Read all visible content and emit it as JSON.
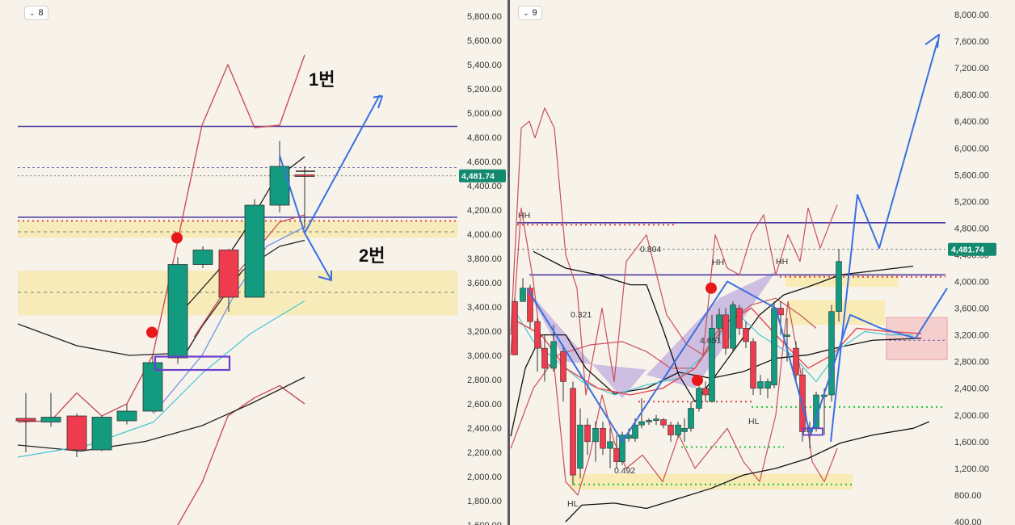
{
  "colors": {
    "bg": "#f7f3eb",
    "up": "#129b7e",
    "down": "#ef3b4e",
    "accent_blue": "#3b6fe0",
    "purple_line": "#4d3aa0",
    "band_red": "#c8505a",
    "yellow_zone": "#f7e9a8",
    "green_dots": "#1dc53e",
    "red_dots": "#e0423f",
    "price_tag": "#138a6f"
  },
  "panels": [
    {
      "id": "left",
      "button_label": "8",
      "button_icon": "chevron-down-icon"
    },
    {
      "id": "right",
      "button_label": "9",
      "button_icon": "chevron-down-icon"
    }
  ],
  "chart_data": [
    {
      "type": "candlestick",
      "price_scale": [
        1600,
        5800
      ],
      "y_ticks": [
        "5,800.00",
        "5,600.00",
        "5,400.00",
        "5,200.00",
        "5,000.00",
        "4,800.00",
        "4,600.00",
        "4,400.00",
        "4,200.00",
        "4,000.00",
        "3,800.00",
        "3,600.00",
        "3,400.00",
        "3,200.00",
        "3,000.00",
        "2,800.00",
        "2,600.00",
        "2,400.00",
        "2,200.00",
        "2,000.00",
        "1,800.00",
        "1,600.00"
      ],
      "last_price": "4,481.74",
      "annotations": [
        "1번",
        "2번"
      ],
      "candles": [
        {
          "o": 2480,
          "h": 2690,
          "l": 2200,
          "c": 2460
        },
        {
          "o": 2450,
          "h": 2690,
          "l": 2410,
          "c": 2490
        },
        {
          "o": 2500,
          "h": 2520,
          "l": 2160,
          "c": 2220
        },
        {
          "o": 2220,
          "h": 2500,
          "l": 2210,
          "c": 2490
        },
        {
          "o": 2460,
          "h": 2600,
          "l": 2430,
          "c": 2540
        },
        {
          "o": 2540,
          "h": 2990,
          "l": 2530,
          "c": 2940
        },
        {
          "o": 2980,
          "h": 3810,
          "l": 2930,
          "c": 3750
        },
        {
          "o": 3750,
          "h": 3900,
          "l": 3720,
          "c": 3870
        },
        {
          "o": 3870,
          "h": 3880,
          "l": 3360,
          "c": 3480
        },
        {
          "o": 3480,
          "h": 4290,
          "l": 3480,
          "c": 4240
        },
        {
          "o": 4240,
          "h": 4770,
          "l": 4180,
          "c": 4560
        },
        {
          "o": 4490,
          "h": 4560,
          "l": 4050,
          "c": 4481
        }
      ],
      "horizontal_levels": [
        4890,
        4140,
        4110,
        3520
      ],
      "zones": [
        [
          3970,
          4110
        ],
        [
          3330,
          3700
        ]
      ]
    },
    {
      "type": "candlestick",
      "price_scale": [
        400,
        8000
      ],
      "y_ticks": [
        "8,000.00",
        "7,600.00",
        "7,200.00",
        "6,800.00",
        "6,400.00",
        "6,000.00",
        "5,600.00",
        "5,200.00",
        "4,800.00",
        "4,400.00",
        "4,000.00",
        "3,600.00",
        "3,200.00",
        "2,800.00",
        "2,400.00",
        "2,000.00",
        "1,600.00",
        "1,200.00",
        "800.00",
        "400.00"
      ],
      "last_price": "4,481.74",
      "annotations": [
        "HH",
        "HH",
        "HH",
        "HL",
        "HL",
        "0.321",
        "0.804",
        "4.651",
        "0.492"
      ],
      "horizontal_levels": [
        4880,
        4100,
        4070
      ],
      "zones": [
        [
          3920,
          4100
        ],
        [
          3350,
          3720
        ],
        [
          880,
          1120
        ]
      ],
      "red_zone": [
        2830,
        3460
      ]
    }
  ]
}
